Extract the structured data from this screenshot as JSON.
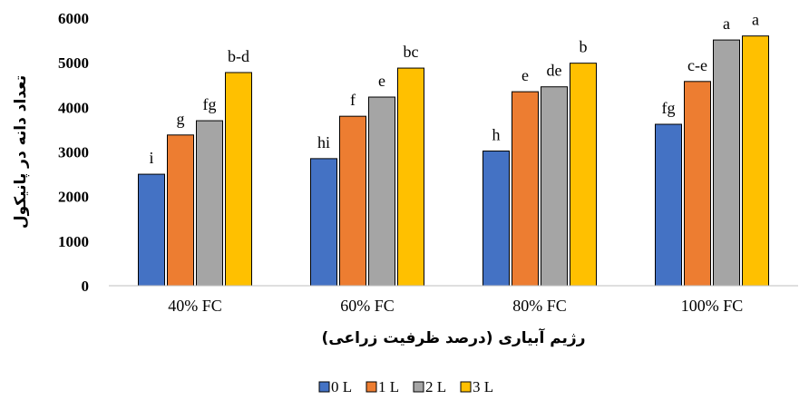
{
  "chart_data": {
    "type": "bar",
    "categories": [
      "40% FC",
      "60% FC",
      "80% FC",
      "100% FC"
    ],
    "xlabel": "رژیم آبیاری (درصد ظرفیت زراعی)",
    "ylabel": "تعداد دانه در پانیکول",
    "ylim": [
      0,
      6000
    ],
    "yticks": [
      0,
      1000,
      2000,
      3000,
      4000,
      5000,
      6000
    ],
    "grid": false,
    "legend_position": "bottom",
    "series": [
      {
        "name": "0 L",
        "color": "#4472C4",
        "values": [
          2500,
          2850,
          3020,
          3620
        ],
        "labels": [
          "i",
          "hi",
          "h",
          "fg"
        ]
      },
      {
        "name": "1 L",
        "color": "#ED7D31",
        "values": [
          3380,
          3800,
          4350,
          4580
        ],
        "labels": [
          "g",
          "f",
          "e",
          "c-e"
        ]
      },
      {
        "name": "2 L",
        "color": "#A5A5A5",
        "values": [
          3700,
          4230,
          4460,
          5510
        ],
        "labels": [
          "fg",
          "e",
          "de",
          "a"
        ]
      },
      {
        "name": "3 L",
        "color": "#FFC000",
        "values": [
          4780,
          4880,
          4990,
          5600
        ],
        "labels": [
          "b-d",
          "bc",
          "b",
          "a"
        ]
      }
    ]
  }
}
